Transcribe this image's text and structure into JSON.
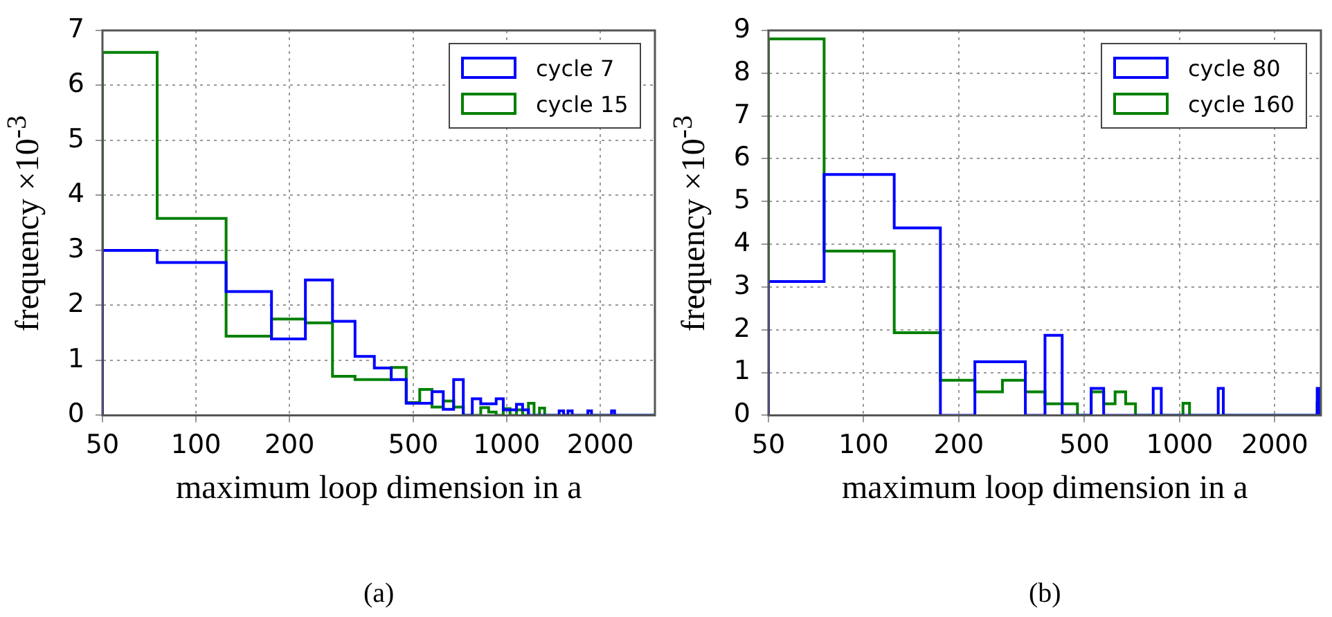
{
  "chart_data": [
    {
      "type": "histogram",
      "xlabel": "maximum loop dimension in a",
      "ylabel": "frequency ×10$^{-3}$",
      "annotations": [
        "(a)"
      ],
      "log": "x",
      "grid": true,
      "legend": "top right",
      "xlim": [
        50,
        3000
      ],
      "xticks": [
        50,
        100,
        200,
        500,
        1000,
        2000
      ],
      "ylim": [
        0,
        7
      ],
      "yticks": [
        0,
        1,
        2,
        3,
        4,
        5,
        6,
        7
      ],
      "bins": [
        50,
        75,
        125,
        175,
        225,
        275,
        325,
        375,
        425,
        475,
        525,
        575,
        625,
        675,
        725,
        775,
        825,
        875,
        925,
        975,
        1025,
        1075,
        1125,
        1175,
        1225,
        1275,
        1325,
        1375,
        1425,
        1475,
        1525,
        1575,
        1625,
        1675,
        1725,
        1775,
        1825,
        1875,
        1925,
        1975,
        2025,
        2075,
        2125,
        2175,
        2225,
        3000
      ],
      "series": [
        {
          "name": "cycle 7",
          "color": "#0000ff",
          "values": [
            3.0,
            2.78,
            2.25,
            1.39,
            2.46,
            1.71,
            1.07,
            0.86,
            0.65,
            0.22,
            0.22,
            0.43,
            0.11,
            0.65,
            0,
            0.3,
            0.21,
            0.21,
            0.3,
            0.1,
            0.1,
            0.2,
            0.1,
            0,
            0,
            0,
            0,
            0,
            0,
            0.08,
            0,
            0.08,
            0,
            0,
            0,
            0,
            0.08,
            0,
            0,
            0,
            0,
            0,
            0,
            0.08,
            0
          ]
        },
        {
          "name": "cycle 15",
          "color": "#008000",
          "values": [
            6.6,
            3.58,
            1.44,
            1.75,
            1.68,
            0.71,
            0.65,
            0.65,
            0.87,
            0.23,
            0.47,
            0.15,
            0.26,
            0.15,
            0,
            0,
            0.14,
            0.06,
            0,
            0.12,
            0,
            0.1,
            0,
            0.22,
            0,
            0.13,
            0,
            0,
            0,
            0,
            0,
            0,
            0,
            0,
            0,
            0,
            0,
            0,
            0,
            0,
            0,
            0,
            0,
            0,
            0
          ]
        }
      ]
    },
    {
      "type": "histogram",
      "xlabel": "maximum loop dimension in a",
      "ylabel": "frequency ×10$^{-3}$",
      "annotations": [
        "(b)"
      ],
      "log": "x",
      "grid": true,
      "legend": "top right",
      "xlim": [
        50,
        2800
      ],
      "xticks": [
        50,
        100,
        200,
        500,
        1000,
        2000
      ],
      "ylim": [
        0,
        9
      ],
      "yticks": [
        0,
        1,
        2,
        3,
        4,
        5,
        6,
        7,
        8,
        9
      ],
      "bins": [
        50,
        75,
        125,
        175,
        225,
        275,
        325,
        375,
        425,
        475,
        525,
        575,
        625,
        675,
        725,
        775,
        825,
        875,
        925,
        975,
        1025,
        1075,
        1125,
        1175,
        1225,
        1275,
        1325,
        1375,
        2725,
        2775,
        2800
      ],
      "series": [
        {
          "name": "cycle 80",
          "color": "#0000ff",
          "values": [
            3.13,
            5.63,
            4.38,
            0,
            1.25,
            1.25,
            0,
            1.87,
            0,
            0,
            0.63,
            0,
            0,
            0,
            0,
            0,
            0.63,
            0,
            0,
            0,
            0,
            0,
            0,
            0,
            0,
            0,
            0.63,
            0,
            0.63,
            0
          ]
        },
        {
          "name": "cycle 160",
          "color": "#008000",
          "values": [
            8.8,
            3.84,
            1.93,
            0.82,
            0.55,
            0.82,
            0.55,
            0.27,
            0.27,
            0,
            0.55,
            0.27,
            0.55,
            0.27,
            0,
            0,
            0,
            0,
            0,
            0,
            0.28,
            0,
            0,
            0,
            0,
            0,
            0,
            0,
            0.29,
            0
          ]
        }
      ]
    }
  ]
}
